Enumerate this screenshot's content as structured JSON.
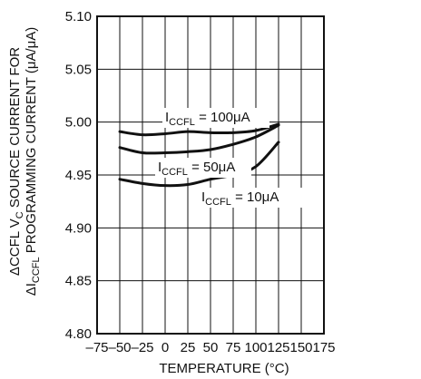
{
  "chart_data": {
    "type": "line",
    "title": "",
    "xlabel": "TEMPERATURE (°C)",
    "ylabel": {
      "line1": {
        "prefix": "ΔCCFL V",
        "sub": "C",
        "suffix": " SOURCE CURRENT FOR"
      },
      "line2": {
        "prefix": "ΔI",
        "sub": "CCFL",
        "suffix": " PROGRAMMING CURRENT (μA/μA)"
      }
    },
    "xlim": [
      -75,
      175
    ],
    "ylim": [
      4.8,
      5.1
    ],
    "xticks": [
      "–75",
      "–50",
      "–25",
      "0",
      "25",
      "50",
      "75",
      "100",
      "125",
      "150",
      "175"
    ],
    "yticks": [
      "4.80",
      "4.85",
      "4.90",
      "4.95",
      "5.00",
      "5.05",
      "5.10"
    ],
    "grid": true,
    "series": [
      {
        "label": {
          "prefix": "I",
          "sub": "CCFL",
          "suffix": " = 100μA"
        },
        "x": [
          -50,
          -25,
          0,
          25,
          50,
          75,
          100,
          125
        ],
        "y": [
          4.991,
          4.988,
          4.989,
          4.991,
          4.99,
          4.99,
          4.992,
          4.998
        ]
      },
      {
        "label": {
          "prefix": "I",
          "sub": "CCFL",
          "suffix": " = 50μA"
        },
        "x": [
          -50,
          -25,
          0,
          25,
          50,
          75,
          100,
          125
        ],
        "y": [
          4.976,
          4.971,
          4.971,
          4.972,
          4.974,
          4.979,
          4.986,
          4.997
        ]
      },
      {
        "label": {
          "prefix": "I",
          "sub": "CCFL",
          "suffix": " = 10μA"
        },
        "x": [
          -50,
          -25,
          0,
          25,
          50,
          75,
          100,
          125
        ],
        "y": [
          4.946,
          4.942,
          4.94,
          4.941,
          4.946,
          4.95,
          4.958,
          4.981
        ]
      }
    ]
  }
}
